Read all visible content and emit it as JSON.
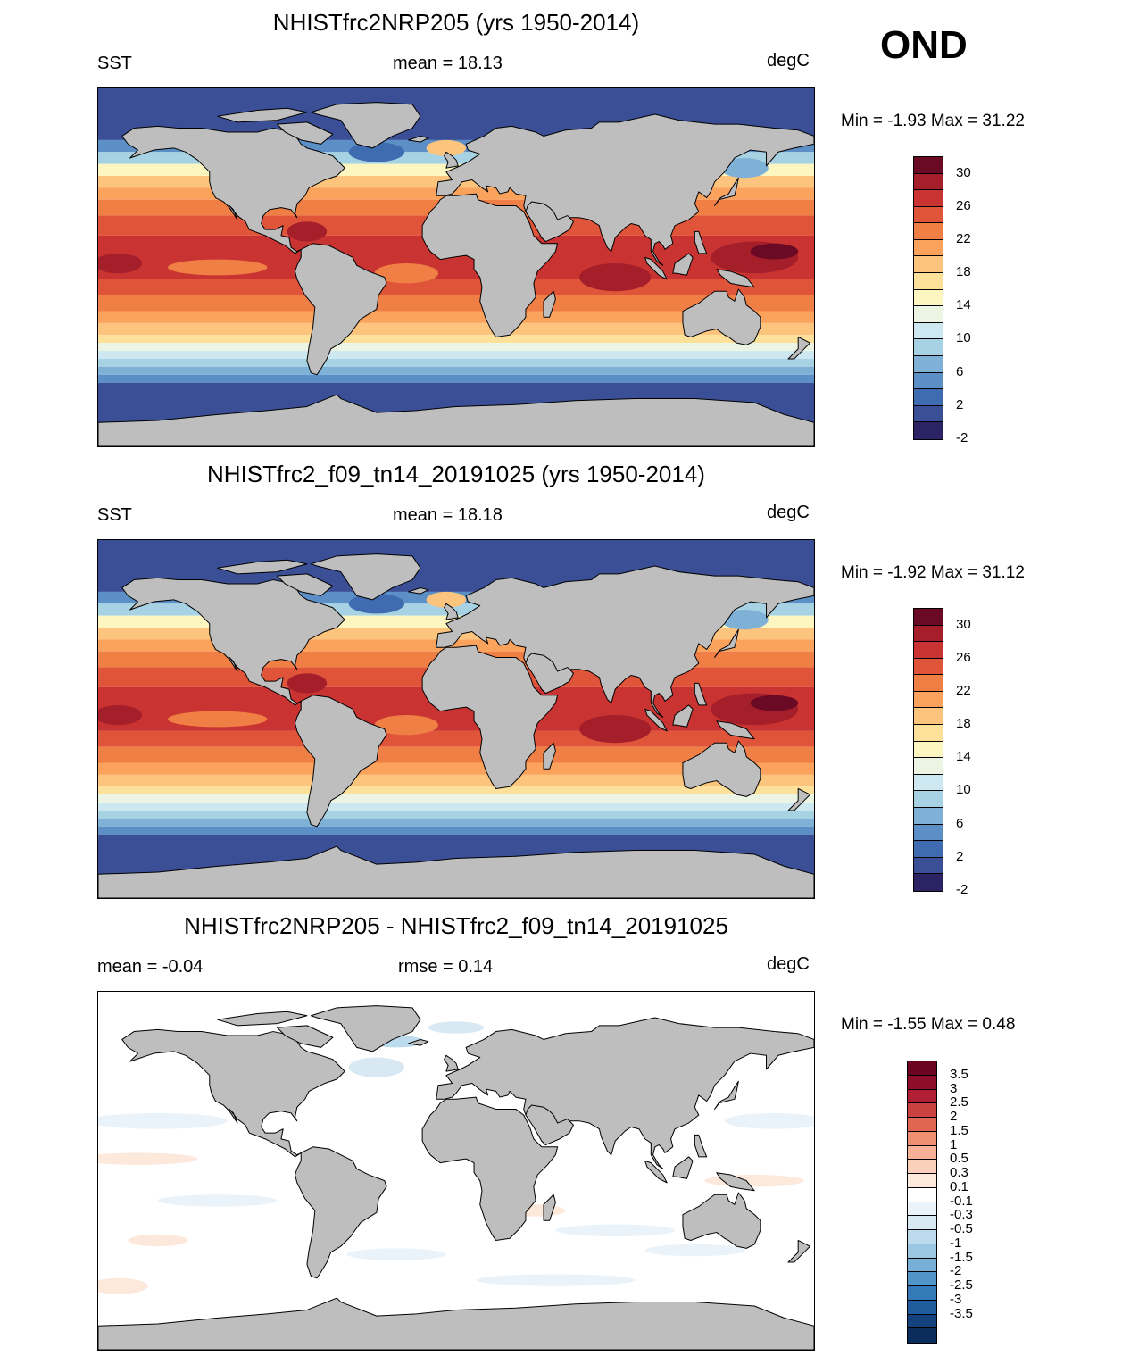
{
  "season": "OND",
  "panels": [
    {
      "id": "case1",
      "title": "NHISTfrc2NRP205 (yrs 1950-2014)",
      "left_label": "SST",
      "stat_label": "mean =  18.13",
      "units": "degC",
      "minmax": "Min =  -1.93 Max =  31.22"
    },
    {
      "id": "case2",
      "title": "NHISTfrc2_f09_tn14_20191025 (yrs 1950-2014)",
      "left_label": "SST",
      "stat_label": "mean =  18.18",
      "units": "degC",
      "minmax": "Min =  -1.92 Max =  31.12"
    },
    {
      "id": "diff",
      "title": "NHISTfrc2NRP205 - NHISTfrc2_f09_tn14_20191025",
      "left_label": "mean =  -0.04",
      "stat_label": "rmse =   0.14",
      "units": "degC",
      "minmax": "Min =  -1.55 Max =   0.48"
    }
  ],
  "colorbars": {
    "sst": {
      "colors": [
        "#2b2364",
        "#3a4f96",
        "#3f6cb0",
        "#5b8fc6",
        "#7fb1d6",
        "#a6d2e4",
        "#cde8f0",
        "#ecf5e4",
        "#fdf6c0",
        "#fde19a",
        "#fdc47e",
        "#fba25c",
        "#f07f46",
        "#e0543a",
        "#c93331",
        "#a51f2a",
        "#6a0a24"
      ],
      "labels": [
        "30",
        "26",
        "22",
        "18",
        "14",
        "10",
        "6",
        "2",
        "-2"
      ]
    },
    "diff": {
      "colors": [
        "#0b2d5e",
        "#14427f",
        "#1f5c9d",
        "#3479b8",
        "#5094c8",
        "#77afd6",
        "#9cc7e3",
        "#bcdbec",
        "#d8e9f4",
        "#eaf3f9",
        "#ffffff",
        "#fde8dc",
        "#fbd0bb",
        "#f6b196",
        "#ee8f72",
        "#e06651",
        "#cb4140",
        "#b01f33",
        "#8e0d28",
        "#6b0420"
      ],
      "labels": [
        "3.5",
        "3",
        "2.5",
        "2",
        "1.5",
        "1",
        "0.5",
        "0.3",
        "0.1",
        "-0.1",
        "-0.3",
        "-0.5",
        "-1",
        "-1.5",
        "-2",
        "-2.5",
        "-3",
        "-3.5"
      ]
    }
  }
}
